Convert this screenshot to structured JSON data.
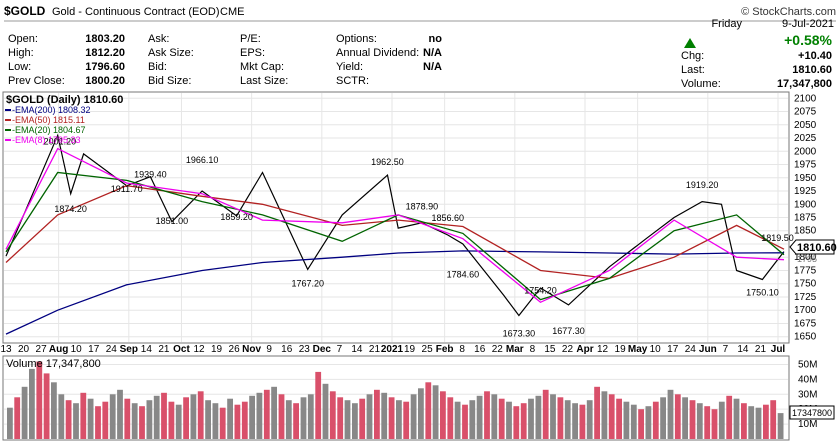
{
  "header": {
    "symbol": "$GOLD",
    "description": "Gold - Continuous Contract (EOD)",
    "exchange": "CME",
    "copyright": "© StockCharts.com",
    "day": "Friday",
    "date": "9-Jul-2021",
    "change_pct": "+0.58%",
    "chg_label": "Chg:",
    "chg_value": "+10.40",
    "last_label": "Last:",
    "last_value": "1810.60",
    "volume_label": "Volume:",
    "volume_value": "17,347,800",
    "colors": {
      "up": "#008000"
    }
  },
  "quote": {
    "col1": [
      {
        "label": "Open:",
        "value": "1803.20"
      },
      {
        "label": "High:",
        "value": "1812.20"
      },
      {
        "label": "Low:",
        "value": "1796.60"
      },
      {
        "label": "Prev Close:",
        "value": "1800.20"
      }
    ],
    "col2": [
      {
        "label": "Ask:",
        "value": ""
      },
      {
        "label": "Ask Size:",
        "value": ""
      },
      {
        "label": "Bid:",
        "value": ""
      },
      {
        "label": "Bid Size:",
        "value": ""
      }
    ],
    "col3": [
      {
        "label": "P/E:",
        "value": ""
      },
      {
        "label": "EPS:",
        "value": ""
      },
      {
        "label": "Mkt Cap:",
        "value": ""
      },
      {
        "label": "Last Size:",
        "value": ""
      }
    ],
    "col4": [
      {
        "label": "Options:",
        "value": "no"
      },
      {
        "label": "Annual Dividend:",
        "value": "N/A"
      },
      {
        "label": "Yield:",
        "value": "N/A"
      },
      {
        "label": "SCTR:",
        "value": ""
      }
    ]
  },
  "chart_data": {
    "type": "line",
    "price_panel": {
      "title": "$GOLD (Daily) 1810.60",
      "y_ticks": [
        "2100",
        "2075",
        "2050",
        "2025",
        "2000",
        "1975",
        "1950",
        "1925",
        "1900",
        "1875",
        "1850",
        "1825",
        "1800",
        "1775",
        "1750",
        "1725",
        "1700",
        "1675",
        "1650"
      ],
      "ylim": [
        1640,
        2110
      ],
      "last_price_label": "1810.60",
      "right_label_fragment": "1795",
      "legend": [
        {
          "name": "EMA(200)",
          "value": "1808.32",
          "color": "#000080"
        },
        {
          "name": "EMA(50)",
          "value": "1815.11",
          "color": "#b22222"
        },
        {
          "name": "EMA(20)",
          "value": "1804.67",
          "color": "#006400"
        },
        {
          "name": "EMA(8)",
          "value": "1795.33",
          "color": "#ee00ee"
        }
      ],
      "annotations": [
        {
          "text": "2001.20",
          "x": "2020-08-07",
          "y": 2001.2
        },
        {
          "text": "1874.20",
          "x": "2020-08-12",
          "y": 1874.2
        },
        {
          "text": "1911.70",
          "x": "2020-09-07",
          "y": 1911.7
        },
        {
          "text": "1939.40",
          "x": "2020-09-18",
          "y": 1939.4
        },
        {
          "text": "1851.00",
          "x": "2020-09-28",
          "y": 1851.0
        },
        {
          "text": "1966.10",
          "x": "2020-10-12",
          "y": 1966.1
        },
        {
          "text": "1859.20",
          "x": "2020-10-28",
          "y": 1859.2
        },
        {
          "text": "1767.20",
          "x": "2020-11-30",
          "y": 1767.2
        },
        {
          "text": "1962.50",
          "x": "2021-01-06",
          "y": 1962.5
        },
        {
          "text": "1878.90",
          "x": "2021-01-22",
          "y": 1878.9
        },
        {
          "text": "1856.60",
          "x": "2021-02-03",
          "y": 1856.6
        },
        {
          "text": "1784.60",
          "x": "2021-02-10",
          "y": 1784.6
        },
        {
          "text": "1754.20",
          "x": "2021-03-18",
          "y": 1754.2
        },
        {
          "text": "1673.30",
          "x": "2021-03-08",
          "y": 1673.3
        },
        {
          "text": "1677.30",
          "x": "2021-03-31",
          "y": 1677.3
        },
        {
          "text": "1919.20",
          "x": "2021-06-01",
          "y": 1919.2
        },
        {
          "text": "1819.50",
          "x": "2021-07-06",
          "y": 1819.5
        },
        {
          "text": "1750.10",
          "x": "2021-06-29",
          "y": 1750.1
        }
      ],
      "series": [
        {
          "name": "$GOLD",
          "color": "#000000",
          "x": [
            "2020-07-13",
            "2020-07-27",
            "2020-08-06",
            "2020-08-12",
            "2020-08-18",
            "2020-09-07",
            "2020-09-18",
            "2020-09-28",
            "2020-10-12",
            "2020-10-28",
            "2020-11-09",
            "2020-11-30",
            "2020-12-16",
            "2021-01-06",
            "2021-01-11",
            "2021-01-22",
            "2021-02-03",
            "2021-02-10",
            "2021-03-01",
            "2021-03-08",
            "2021-03-18",
            "2021-03-31",
            "2021-04-19",
            "2021-05-06",
            "2021-05-19",
            "2021-06-01",
            "2021-06-10",
            "2021-06-17",
            "2021-06-29",
            "2021-07-06",
            "2021-07-09"
          ],
          "y": [
            1802,
            1935,
            2030,
            1920,
            1995,
            1935,
            1952,
            1867,
            1925,
            1878,
            1960,
            1777,
            1880,
            1955,
            1855,
            1865,
            1842,
            1825,
            1728,
            1690,
            1742,
            1710,
            1782,
            1835,
            1875,
            1905,
            1900,
            1775,
            1758,
            1795,
            1810.6
          ]
        },
        {
          "name": "EMA(200)",
          "color": "#000080",
          "x": [
            "2020-07-13",
            "2020-08-06",
            "2020-09-07",
            "2020-10-12",
            "2020-11-09",
            "2020-12-16",
            "2021-01-11",
            "2021-02-10",
            "2021-03-18",
            "2021-04-19",
            "2021-05-19",
            "2021-06-17",
            "2021-07-09"
          ],
          "y": [
            1655,
            1700,
            1748,
            1775,
            1790,
            1800,
            1808,
            1812,
            1810,
            1808,
            1806,
            1808,
            1808.32
          ]
        },
        {
          "name": "EMA(50)",
          "color": "#b22222",
          "x": [
            "2020-07-13",
            "2020-08-06",
            "2020-09-07",
            "2020-10-12",
            "2020-11-09",
            "2020-12-16",
            "2021-01-11",
            "2021-02-10",
            "2021-03-18",
            "2021-04-19",
            "2021-05-19",
            "2021-06-17",
            "2021-07-09"
          ],
          "y": [
            1790,
            1880,
            1935,
            1915,
            1900,
            1860,
            1870,
            1858,
            1775,
            1760,
            1800,
            1860,
            1815.11
          ]
        },
        {
          "name": "EMA(20)",
          "color": "#006400",
          "x": [
            "2020-07-13",
            "2020-08-06",
            "2020-09-07",
            "2020-10-12",
            "2020-11-09",
            "2020-12-16",
            "2021-01-11",
            "2021-02-10",
            "2021-03-18",
            "2021-04-19",
            "2021-05-19",
            "2021-06-17",
            "2021-07-09"
          ],
          "y": [
            1810,
            1960,
            1945,
            1905,
            1880,
            1830,
            1880,
            1845,
            1720,
            1760,
            1850,
            1880,
            1804.67
          ]
        },
        {
          "name": "EMA(8)",
          "color": "#ee00ee",
          "x": [
            "2020-07-13",
            "2020-08-06",
            "2020-09-07",
            "2020-10-12",
            "2020-11-09",
            "2020-12-16",
            "2021-01-11",
            "2021-02-10",
            "2021-03-18",
            "2021-04-19",
            "2021-05-19",
            "2021-06-17",
            "2021-07-09"
          ],
          "y": [
            1815,
            2005,
            1940,
            1920,
            1870,
            1865,
            1880,
            1835,
            1715,
            1775,
            1870,
            1800,
            1795.33
          ]
        }
      ]
    },
    "volume_panel": {
      "title": "Volume 17,347,800",
      "y_ticks": [
        "50M",
        "40M",
        "30M",
        "20M",
        "10M"
      ],
      "ylim": [
        0,
        55000000
      ],
      "last_volume_label": "17347800",
      "values": [
        21000000,
        28000000,
        35000000,
        47000000,
        52000000,
        44000000,
        38000000,
        30000000,
        26000000,
        24000000,
        31000000,
        27000000,
        22000000,
        25000000,
        30000000,
        33000000,
        27000000,
        24000000,
        22000000,
        26000000,
        29000000,
        31000000,
        25000000,
        23000000,
        28000000,
        30000000,
        32000000,
        26000000,
        24000000,
        21000000,
        27000000,
        23000000,
        25000000,
        29000000,
        31000000,
        33000000,
        35000000,
        30000000,
        26000000,
        24000000,
        28000000,
        30000000,
        45000000,
        37000000,
        32000000,
        28000000,
        26000000,
        24000000,
        27000000,
        30000000,
        33000000,
        31000000,
        28000000,
        26000000,
        25000000,
        30000000,
        34000000,
        38000000,
        36000000,
        32000000,
        28000000,
        25000000,
        23000000,
        26000000,
        29000000,
        32000000,
        30000000,
        27000000,
        25000000,
        22000000,
        24000000,
        27000000,
        29000000,
        33000000,
        30000000,
        28000000,
        26000000,
        24000000,
        23000000,
        26000000,
        35000000,
        32000000,
        30000000,
        27000000,
        25000000,
        23000000,
        20000000,
        22000000,
        25000000,
        28000000,
        33000000,
        30000000,
        28000000,
        26000000,
        24000000,
        22000000,
        20000000,
        25000000,
        29000000,
        27000000,
        24000000,
        22000000,
        21000000,
        23000000,
        26000000,
        17347800
      ],
      "up_flags": "1011001101010011010110010101101001101010110100110101010110100101101010011010110101001101011010100101011001011"
    },
    "x_axis": {
      "labels": [
        "13",
        "20",
        "27",
        "Aug",
        "10",
        "17",
        "24",
        "Sep",
        "14",
        "21",
        "Oct",
        "12",
        "19",
        "26",
        "Nov",
        "9",
        "16",
        "23",
        "Dec",
        "7",
        "14",
        "21",
        "2021",
        "19",
        "25",
        "Feb",
        "8",
        "16",
        "22",
        "Mar",
        "8",
        "15",
        "22",
        "Apr",
        "12",
        "19",
        "May",
        "10",
        "17",
        "24",
        "Jun",
        "7",
        "14",
        "21",
        "Jul"
      ],
      "bold": [
        "Aug",
        "Sep",
        "Oct",
        "Nov",
        "Dec",
        "2021",
        "Feb",
        "Mar",
        "Apr",
        "May",
        "Jun",
        "Jul"
      ]
    }
  }
}
